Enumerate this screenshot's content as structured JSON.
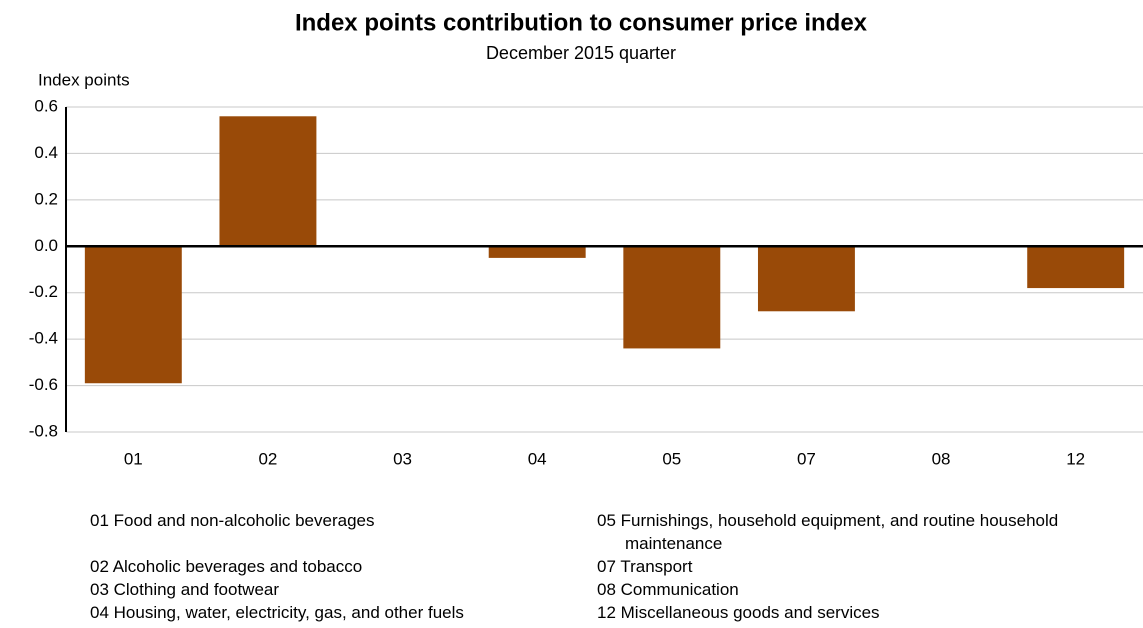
{
  "chart_data": {
    "type": "bar",
    "title": "Index points contribution to consumer price index",
    "subtitle": "December 2015 quarter",
    "y_label": "Index points",
    "categories": [
      "01",
      "02",
      "03",
      "04",
      "05",
      "07",
      "08",
      "12"
    ],
    "values": [
      -0.59,
      0.56,
      0,
      -0.05,
      -0.44,
      -0.28,
      0,
      -0.18
    ],
    "color": "#994a08",
    "ylim": [
      -0.8,
      0.6
    ],
    "yticks": [
      -0.8,
      -0.6,
      -0.4,
      -0.2,
      {
        "value": 0,
        "label": "0.0"
      },
      0.2,
      0.4,
      0.6
    ],
    "grid": true,
    "notes": [
      "01 Food and non-alcoholic beverages",
      "02 Alcoholic beverages and tobacco",
      "03 Clothing and footwear",
      "04 Housing, water, electricity, gas, and other fuels",
      "05 Furnishings, household equipment, and routine household maintenance",
      "07 Transport",
      "08 Communication",
      "12 Miscellaneous goods and services"
    ]
  }
}
